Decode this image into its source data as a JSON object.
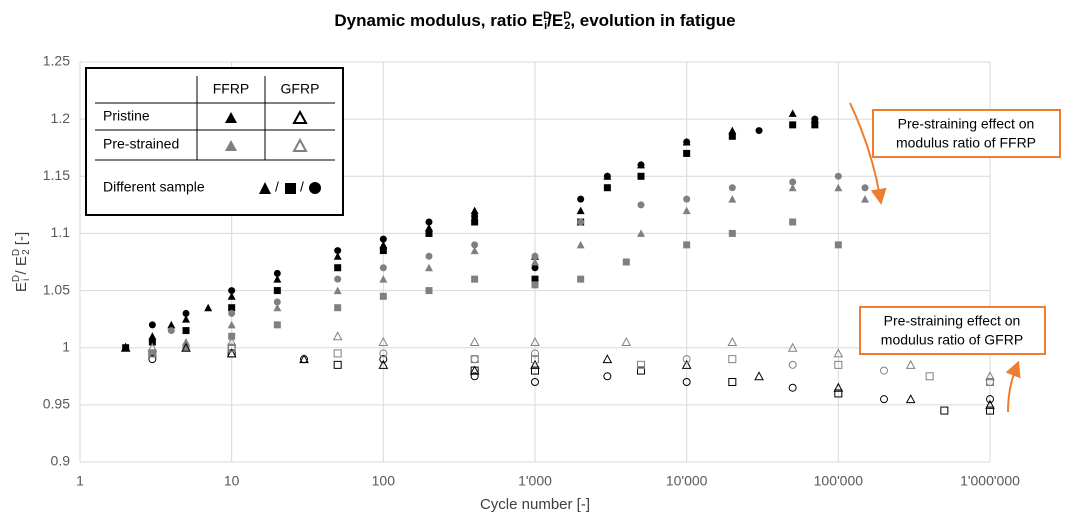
{
  "chart_data": {
    "type": "scatter",
    "title": [
      "Dynamic modulus, ratio E",
      "D",
      "i",
      "/E",
      "D",
      "2",
      ", evolution in fatigue"
    ],
    "x_label": "Cycle number [-]",
    "y_label": [
      "E",
      "D",
      "i",
      " / E",
      "D",
      "2",
      " [-]"
    ],
    "log_x": true,
    "grid": true,
    "xlim": [
      1,
      1000000
    ],
    "xticks": [
      1,
      10,
      100,
      {
        "value": 1000,
        "label": "1'000"
      },
      {
        "value": 10000,
        "label": "10'000"
      },
      {
        "value": 100000,
        "label": "100'000"
      },
      {
        "value": 1000000,
        "label": "1'000'000"
      }
    ],
    "ylim": [
      0.9,
      1.25
    ],
    "yticks": [
      0.9,
      0.95,
      1,
      1.05,
      1.1,
      1.15,
      1.2,
      1.25
    ],
    "legend": {
      "columns": [
        "FFRP",
        "GFRP"
      ],
      "rows": [
        "Pristine",
        "Pre-strained"
      ],
      "samples_label": "Different sample",
      "sample_separator": "/"
    },
    "annotations": [
      [
        "Pre-straining effect on",
        "modulus ratio of FFRP"
      ],
      [
        "Pre-straining effect on",
        "modulus ratio of GFRP"
      ]
    ],
    "series": [
      {
        "color": "#000000",
        "marker": "triangle",
        "filled": true,
        "x": [
          2,
          3,
          4,
          5,
          7,
          10,
          20,
          50,
          100,
          200,
          400,
          1000,
          2000,
          3000,
          5000,
          10000,
          20000,
          50000,
          70000
        ],
        "values": [
          1.0,
          1.01,
          1.02,
          1.025,
          1.035,
          1.045,
          1.06,
          1.08,
          1.09,
          1.105,
          1.12,
          1.08,
          1.12,
          1.15,
          1.16,
          1.18,
          1.19,
          1.205,
          1.2
        ]
      },
      {
        "color": "#000000",
        "marker": "square",
        "filled": true,
        "x": [
          2,
          3,
          5,
          10,
          20,
          50,
          100,
          200,
          400,
          1000,
          2000,
          3000,
          5000,
          10000,
          20000,
          50000,
          70000
        ],
        "values": [
          1.0,
          1.005,
          1.015,
          1.035,
          1.05,
          1.07,
          1.085,
          1.1,
          1.11,
          1.06,
          1.11,
          1.14,
          1.15,
          1.17,
          1.185,
          1.195,
          1.195
        ]
      },
      {
        "color": "#000000",
        "marker": "circle",
        "filled": true,
        "x": [
          3,
          5,
          10,
          20,
          50,
          100,
          200,
          400,
          1000,
          2000,
          3000,
          5000,
          10000,
          30000,
          70000
        ],
        "values": [
          1.02,
          1.03,
          1.05,
          1.065,
          1.085,
          1.095,
          1.11,
          1.115,
          1.07,
          1.13,
          1.15,
          1.16,
          1.18,
          1.19,
          1.2
        ]
      },
      {
        "color": "#808080",
        "marker": "triangle",
        "filled": true,
        "x": [
          3,
          5,
          10,
          20,
          50,
          100,
          200,
          400,
          1000,
          2000,
          5000,
          10000,
          20000,
          50000,
          100000,
          150000
        ],
        "values": [
          0.995,
          1.005,
          1.02,
          1.035,
          1.05,
          1.06,
          1.07,
          1.085,
          1.075,
          1.09,
          1.1,
          1.12,
          1.13,
          1.14,
          1.14,
          1.13
        ]
      },
      {
        "color": "#808080",
        "marker": "square",
        "filled": true,
        "x": [
          3,
          5,
          10,
          20,
          50,
          100,
          200,
          400,
          1000,
          2000,
          4000,
          10000,
          20000,
          50000,
          100000
        ],
        "values": [
          0.995,
          1.0,
          1.01,
          1.02,
          1.035,
          1.045,
          1.05,
          1.06,
          1.055,
          1.06,
          1.075,
          1.09,
          1.1,
          1.11,
          1.09
        ]
      },
      {
        "color": "#808080",
        "marker": "circle",
        "filled": true,
        "x": [
          4,
          10,
          20,
          50,
          100,
          200,
          400,
          1000,
          2000,
          5000,
          10000,
          20000,
          50000,
          100000,
          150000
        ],
        "values": [
          1.015,
          1.03,
          1.04,
          1.06,
          1.07,
          1.08,
          1.09,
          1.08,
          1.11,
          1.125,
          1.13,
          1.14,
          1.145,
          1.15,
          1.14
        ]
      },
      {
        "color": "#000000",
        "marker": "triangle",
        "filled": false,
        "x": [
          2,
          5,
          10,
          30,
          100,
          400,
          1000,
          3000,
          10000,
          30000,
          100000,
          300000,
          1000000
        ],
        "values": [
          1.0,
          1.0,
          0.995,
          0.99,
          0.985,
          0.98,
          0.985,
          0.99,
          0.985,
          0.975,
          0.965,
          0.955,
          0.95
        ]
      },
      {
        "color": "#000000",
        "marker": "square",
        "filled": false,
        "x": [
          3,
          10,
          50,
          400,
          1000,
          5000,
          20000,
          100000,
          500000,
          1000000
        ],
        "values": [
          0.995,
          0.995,
          0.985,
          0.98,
          0.98,
          0.98,
          0.97,
          0.96,
          0.945,
          0.945
        ]
      },
      {
        "color": "#000000",
        "marker": "circle",
        "filled": false,
        "x": [
          3,
          10,
          30,
          100,
          400,
          1000,
          3000,
          10000,
          50000,
          200000,
          1000000
        ],
        "values": [
          0.99,
          1.0,
          0.99,
          0.99,
          0.975,
          0.97,
          0.975,
          0.97,
          0.965,
          0.955,
          0.955
        ]
      },
      {
        "color": "#808080",
        "marker": "triangle",
        "filled": false,
        "x": [
          3,
          10,
          50,
          100,
          400,
          1000,
          4000,
          20000,
          50000,
          100000,
          300000,
          1000000
        ],
        "values": [
          1.0,
          1.005,
          1.01,
          1.005,
          1.005,
          1.005,
          1.005,
          1.005,
          1.0,
          0.995,
          0.985,
          0.975
        ]
      },
      {
        "color": "#808080",
        "marker": "square",
        "filled": false,
        "x": [
          3,
          10,
          50,
          400,
          1000,
          5000,
          20000,
          100000,
          400000,
          1000000
        ],
        "values": [
          0.995,
          1.0,
          0.995,
          0.99,
          0.99,
          0.985,
          0.99,
          0.985,
          0.975,
          0.97
        ]
      },
      {
        "color": "#808080",
        "marker": "circle",
        "filled": false,
        "x": [
          3,
          10,
          100,
          400,
          1000,
          10000,
          50000,
          200000,
          1000000
        ],
        "values": [
          0.995,
          1.0,
          0.995,
          0.99,
          0.995,
          0.99,
          0.985,
          0.98,
          0.97
        ]
      }
    ]
  }
}
